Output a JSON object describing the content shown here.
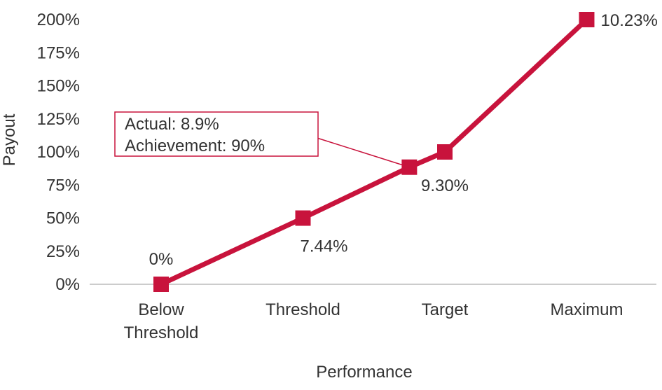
{
  "chart_data": {
    "type": "line",
    "title": "",
    "xlabel": "Performance",
    "ylabel": "Payout",
    "categories": [
      [
        "Below",
        "Threshold"
      ],
      [
        "Threshold"
      ],
      [
        "Target"
      ],
      [
        "Maximum"
      ]
    ],
    "yticks": [
      "0%",
      "25%",
      "50%",
      "75%",
      "100%",
      "125%",
      "150%",
      "175%",
      "200%"
    ],
    "ylim": [
      0,
      200
    ],
    "series": [
      {
        "color": "#c8133c",
        "points": [
          {
            "x": 0,
            "y": 0,
            "label": "0%"
          },
          {
            "x": 1,
            "y": 50,
            "label": "7.44%"
          },
          {
            "x": 1.75,
            "y": 88.5,
            "label": ""
          },
          {
            "x": 2,
            "y": 100,
            "label": "9.30%"
          },
          {
            "x": 3,
            "y": 200,
            "label": "10.23%"
          }
        ]
      }
    ],
    "annotation": {
      "lines": [
        "Actual: 8.9%",
        "Achievement: 90%"
      ],
      "point_index": 2
    },
    "grid": false,
    "legend": "none",
    "colors": {
      "line": "#c8133c",
      "text": "#333333",
      "axis": "#bbbbbb"
    }
  }
}
